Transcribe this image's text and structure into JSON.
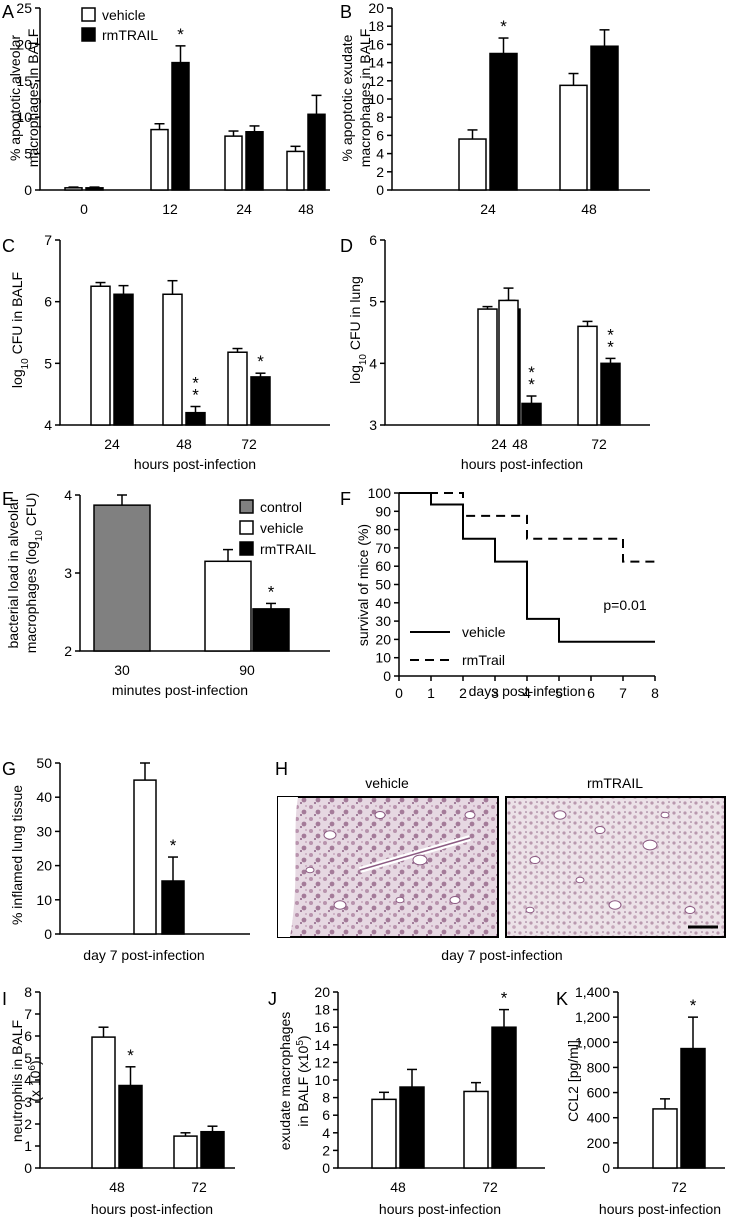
{
  "colors": {
    "vehicle": "#ffffff",
    "rmTRAIL": "#000000",
    "control": "#808080"
  },
  "legend_AB": [
    {
      "label": "vehicle",
      "color": "#ffffff"
    },
    {
      "label": "rmTRAIL",
      "color": "#000000"
    }
  ],
  "legend_E": [
    {
      "label": "control",
      "color": "#808080"
    },
    {
      "label": "vehicle",
      "color": "#ffffff"
    },
    {
      "label": "rmTRAIL",
      "color": "#000000"
    }
  ],
  "chart_data": [
    {
      "id": "A",
      "panel_label": "A",
      "type": "bar",
      "categories": [
        "0",
        "12",
        "24",
        "48"
      ],
      "series": [
        {
          "name": "vehicle",
          "values": [
            0.3,
            8.3,
            7.4,
            5.3
          ],
          "errors": [
            0.1,
            0.8,
            0.7,
            0.7
          ]
        },
        {
          "name": "rmTRAIL",
          "values": [
            0.3,
            17.5,
            8.0,
            10.4
          ],
          "errors": [
            0.1,
            2.3,
            0.8,
            2.6
          ]
        }
      ],
      "significance": [
        {
          "category": "12",
          "series": "rmTRAIL",
          "label": "*"
        }
      ],
      "xlabel": "",
      "ylabel": "% apoptotic alveolar macrophages in BALF",
      "ylim": [
        0,
        25
      ],
      "yticks": [
        0,
        5,
        10,
        15,
        20,
        25
      ]
    },
    {
      "id": "B",
      "panel_label": "B",
      "type": "bar",
      "categories": [
        "24",
        "48"
      ],
      "series": [
        {
          "name": "vehicle",
          "values": [
            5.6,
            11.5
          ],
          "errors": [
            1.0,
            1.3
          ]
        },
        {
          "name": "rmTRAIL",
          "values": [
            15.0,
            15.8
          ],
          "errors": [
            1.7,
            1.8
          ]
        }
      ],
      "significance": [
        {
          "category": "24",
          "series": "rmTRAIL",
          "label": "*"
        }
      ],
      "xlabel": "",
      "ylabel": "% apoptotic exudate macrophages in BALF",
      "ylim": [
        0,
        20
      ],
      "yticks": [
        0,
        2,
        4,
        6,
        8,
        10,
        12,
        14,
        16,
        18,
        20
      ]
    },
    {
      "id": "C",
      "panel_label": "C",
      "type": "bar",
      "categories": [
        "24",
        "48",
        "72"
      ],
      "series": [
        {
          "name": "vehicle",
          "values": [
            6.25,
            6.12,
            5.18
          ],
          "errors": [
            0.06,
            0.22,
            0.06
          ]
        },
        {
          "name": "rmTRAIL",
          "values": [
            6.12,
            4.2,
            4.78
          ],
          "errors": [
            0.14,
            0.1,
            0.06
          ]
        }
      ],
      "significance": [
        {
          "category": "48",
          "series": "rmTRAIL",
          "label": "**"
        },
        {
          "category": "72",
          "series": "rmTRAIL",
          "label": "*"
        }
      ],
      "xlabel": "hours post-infection",
      "ylabel": "log10 CFU in BALF",
      "ylim": [
        4,
        7
      ],
      "yticks": [
        4,
        5,
        6,
        7
      ]
    },
    {
      "id": "D",
      "panel_label": "D",
      "type": "bar",
      "categories": [
        "24",
        "48",
        "72"
      ],
      "series": [
        {
          "name": "vehicle",
          "values": [
            4.88,
            5.02,
            4.6
          ],
          "errors": [
            0.04,
            0.2,
            0.08
          ]
        },
        {
          "name": "rmTRAIL",
          "values": [
            4.88,
            3.35,
            4.0
          ],
          "errors": [
            0.14,
            0.12,
            0.08
          ]
        }
      ],
      "significance": [
        {
          "category": "48",
          "series": "rmTRAIL",
          "label": "**"
        },
        {
          "category": "72",
          "series": "rmTRAIL",
          "label": "**"
        }
      ],
      "xlabel": "hours post-infection",
      "ylabel": "log10 CFU in lung",
      "ylim": [
        3,
        6
      ],
      "yticks": [
        3,
        4,
        5,
        6
      ]
    },
    {
      "id": "E",
      "panel_label": "E",
      "type": "bar",
      "categories": [
        "30",
        "90"
      ],
      "bars": [
        {
          "category": "30",
          "series": "control",
          "value": 3.87,
          "error": 0.13
        },
        {
          "category": "90",
          "series": "vehicle",
          "value": 3.15,
          "error": 0.15
        },
        {
          "category": "90",
          "series": "rmTRAIL",
          "value": 2.54,
          "error": 0.07
        }
      ],
      "significance": [
        {
          "category": "90",
          "series": "rmTRAIL",
          "label": "*"
        }
      ],
      "xlabel": "minutes post-infection",
      "ylabel": "bacterial load in alveolar macrophages (log10 CFU)",
      "ylim": [
        2,
        4
      ],
      "yticks": [
        2,
        3,
        4
      ]
    },
    {
      "id": "F",
      "panel_label": "F",
      "type": "line",
      "subtype": "step",
      "series": [
        {
          "name": "vehicle",
          "style": "solid",
          "x": [
            0,
            1,
            2,
            3,
            4,
            5,
            8
          ],
          "y": [
            100,
            93.75,
            75,
            62.5,
            31.25,
            18.75,
            18.75
          ]
        },
        {
          "name": "rmTrail",
          "style": "dashed",
          "x": [
            0,
            1,
            2,
            4,
            7,
            8
          ],
          "y": [
            100,
            100,
            87.5,
            75,
            62.5,
            62.5
          ]
        }
      ],
      "annotation": "p=0.01",
      "xlabel": "days post-infection",
      "ylabel": "survival of mice (%)",
      "xlim": [
        0,
        8
      ],
      "ylim": [
        0,
        100
      ],
      "xticks": [
        0,
        1,
        2,
        3,
        4,
        5,
        6,
        7,
        8
      ],
      "yticks": [
        0,
        10,
        20,
        30,
        40,
        50,
        60,
        70,
        80,
        90,
        100
      ]
    },
    {
      "id": "G",
      "panel_label": "G",
      "type": "bar",
      "categories": [
        "day 7"
      ],
      "series": [
        {
          "name": "vehicle",
          "values": [
            45
          ],
          "errors": [
            5
          ]
        },
        {
          "name": "rmTRAIL",
          "values": [
            15.5
          ],
          "errors": [
            7
          ]
        }
      ],
      "significance": [
        {
          "category": "day 7",
          "series": "rmTRAIL",
          "label": "*"
        }
      ],
      "xlabel": "day 7 post-infection",
      "ylabel": "% inflamed lung tissue",
      "ylim": [
        0,
        50
      ],
      "yticks": [
        0,
        10,
        20,
        30,
        40,
        50
      ]
    },
    {
      "id": "I",
      "panel_label": "I",
      "type": "bar",
      "categories": [
        "48",
        "72"
      ],
      "series": [
        {
          "name": "vehicle",
          "values": [
            5.95,
            1.45
          ],
          "errors": [
            0.45,
            0.15
          ]
        },
        {
          "name": "rmTRAIL",
          "values": [
            3.75,
            1.65
          ],
          "errors": [
            0.85,
            0.25
          ]
        }
      ],
      "significance": [
        {
          "category": "48",
          "series": "rmTRAIL",
          "label": "*"
        }
      ],
      "xlabel": "hours post-infection",
      "ylabel": "neutrophils in BALF (x 10^6)",
      "ylim": [
        0,
        8
      ],
      "yticks": [
        0,
        1,
        2,
        3,
        4,
        5,
        6,
        7,
        8
      ]
    },
    {
      "id": "J",
      "panel_label": "J",
      "type": "bar",
      "categories": [
        "48",
        "72"
      ],
      "series": [
        {
          "name": "vehicle",
          "values": [
            7.8,
            8.7
          ],
          "errors": [
            0.8,
            1.0
          ]
        },
        {
          "name": "rmTRAIL",
          "values": [
            9.2,
            16.0
          ],
          "errors": [
            2.0,
            2.0
          ]
        }
      ],
      "significance": [
        {
          "category": "72",
          "series": "rmTRAIL",
          "label": "*"
        }
      ],
      "xlabel": "hours post-infection",
      "ylabel": "exudate macrophages in BALF (x10^5)",
      "ylim": [
        0,
        20
      ],
      "yticks": [
        0,
        2,
        4,
        6,
        8,
        10,
        12,
        14,
        16,
        18,
        20
      ]
    },
    {
      "id": "K",
      "panel_label": "K",
      "type": "bar",
      "categories": [
        "72"
      ],
      "series": [
        {
          "name": "vehicle",
          "values": [
            470
          ],
          "errors": [
            80
          ]
        },
        {
          "name": "rmTRAIL",
          "values": [
            950
          ],
          "errors": [
            250
          ]
        }
      ],
      "significance": [
        {
          "category": "72",
          "series": "rmTRAIL",
          "label": "*"
        }
      ],
      "xlabel": "hours post-infection",
      "ylabel": "CCL2 [pg/ml]",
      "ylim": [
        0,
        1400
      ],
      "yticks": [
        0,
        200,
        400,
        600,
        800,
        1000,
        1200,
        1400
      ],
      "ytick_labels": [
        "0",
        "200",
        "400",
        "600",
        "800",
        "1,000",
        "1,200",
        "1,400"
      ]
    }
  ],
  "panelH": {
    "panel_label": "H",
    "left_title": "vehicle",
    "right_title": "rmTRAIL",
    "caption": "day 7 post-infection"
  }
}
